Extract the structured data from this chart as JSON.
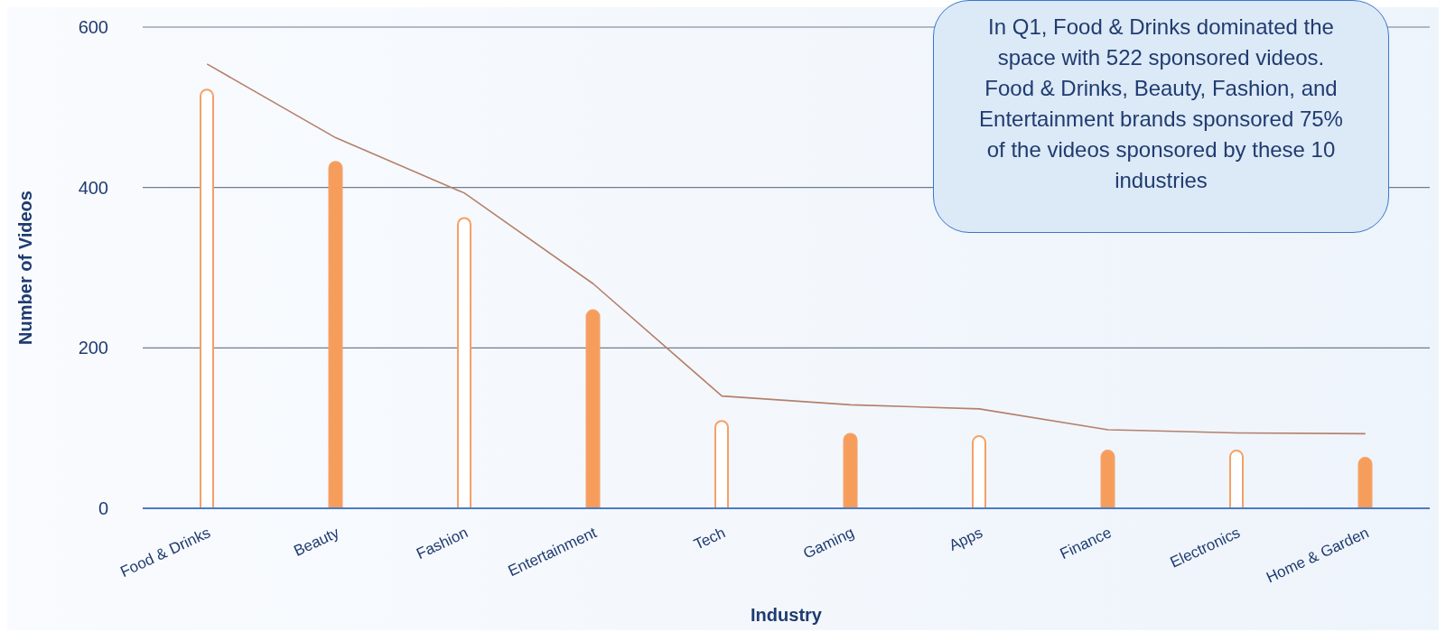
{
  "chart_data": {
    "type": "bar",
    "xlabel": "Industry",
    "ylabel": "Number of Videos",
    "categories": [
      "Food & Drinks",
      "Beauty",
      "Fashion",
      "Entertainment",
      "Tech",
      "Gaming",
      "Apps",
      "Finance",
      "Electronics",
      "Home & Garden"
    ],
    "series": [
      {
        "type": "bar",
        "color": "#f5a066",
        "colors": [
          "#ffffff",
          "#f79d5c",
          "#ffffff",
          "#f79d5c",
          "#ffffff",
          "#f79d5c",
          "#ffffff",
          "#f79d5c",
          "#ffffff",
          "#f79d5c"
        ],
        "values": [
          522,
          432,
          362,
          247,
          109,
          93,
          90,
          72,
          72,
          63
        ]
      },
      {
        "type": "line",
        "color": "#b5806a",
        "values": [
          554,
          462,
          393,
          280,
          140,
          129,
          124,
          98,
          94,
          93
        ]
      }
    ],
    "ylim": [
      0,
      600
    ],
    "yticks": [
      0,
      200,
      400,
      600
    ],
    "grid": "y",
    "legend": false,
    "marker": "none",
    "line_style": "solid",
    "annotations": [
      "In Q1, Food & Drinks dominated the space with 522 sponsored videos. Food & Drinks, Beauty, Fashion, and Entertainment brands  sponsored 75% of the videos sponsored by these 10 industries"
    ]
  }
}
